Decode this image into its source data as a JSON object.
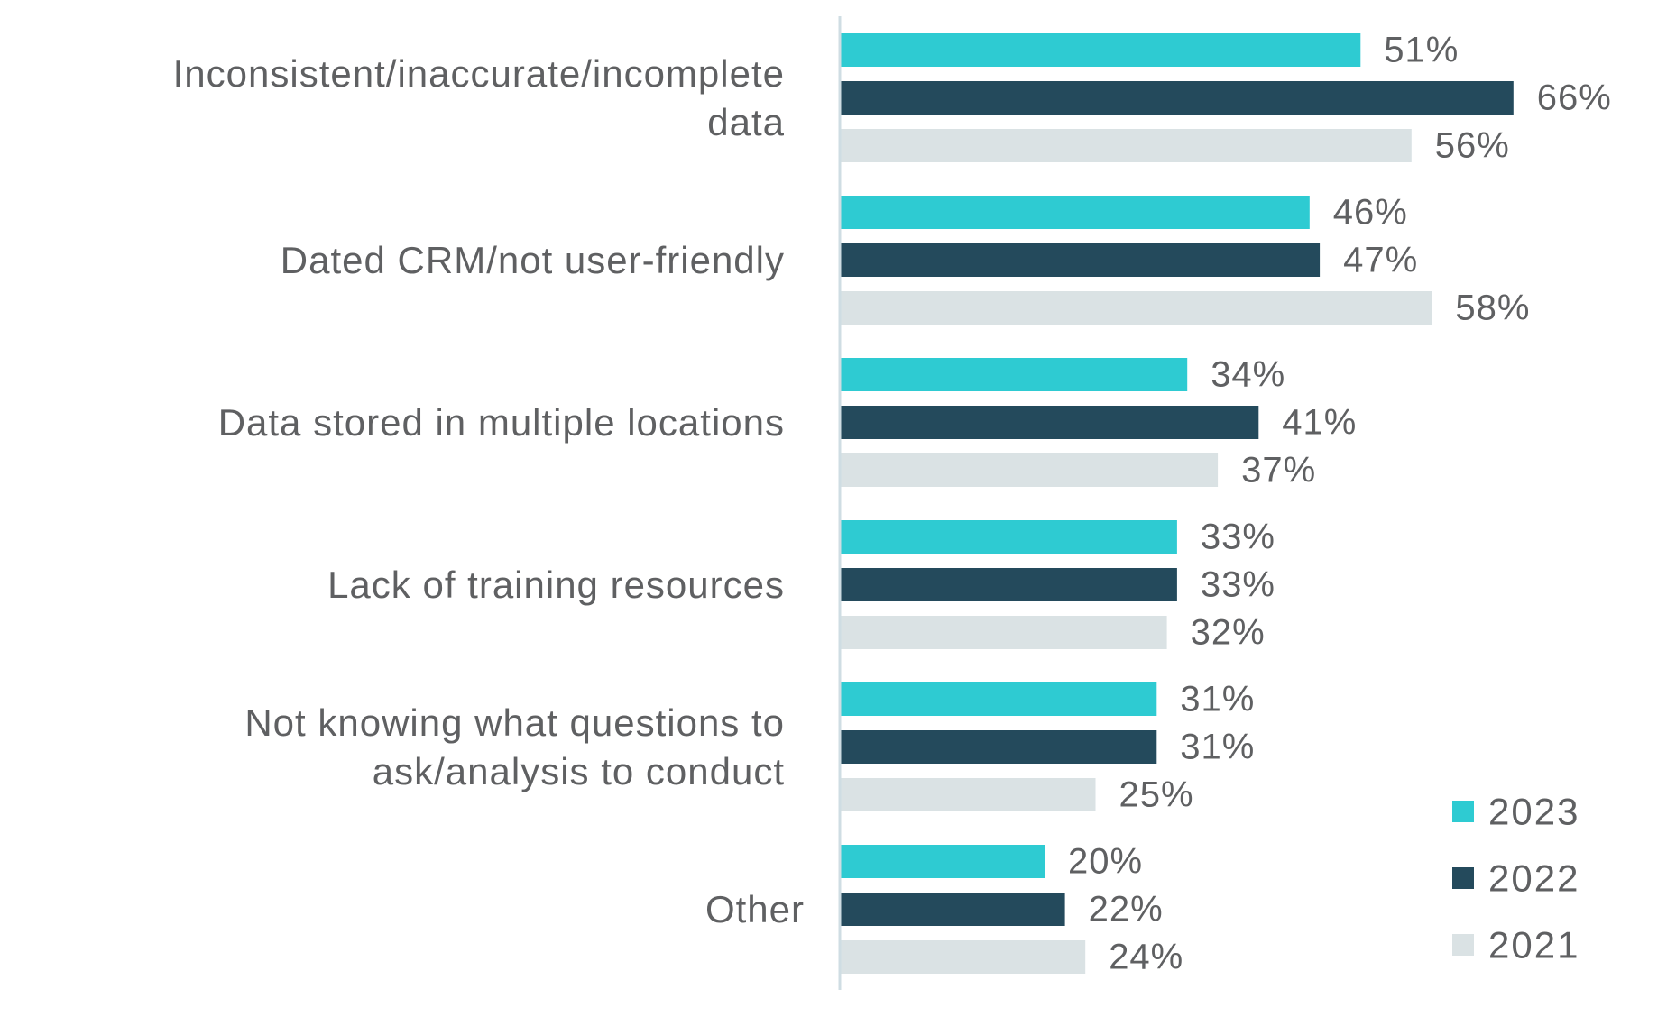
{
  "chart_data": {
    "type": "bar",
    "orientation": "horizontal",
    "categories": [
      "Inconsistent/inaccurate/incomplete data",
      "Dated CRM/not user-friendly",
      "Data stored in multiple locations",
      "Lack of training resources",
      "Not knowing what questions to ask/analysis to conduct",
      "Other"
    ],
    "category_lines": [
      [
        "Inconsistent/inaccurate/incomplete",
        "data"
      ],
      [
        "Dated CRM/not user-friendly"
      ],
      [
        "Data stored in multiple locations"
      ],
      [
        "Lack of training resources"
      ],
      [
        "Not knowing what questions to",
        "ask/analysis to conduct"
      ],
      [
        "Other"
      ]
    ],
    "series": [
      {
        "name": "2023",
        "color": "#2ecbd2",
        "values": [
          51,
          46,
          34,
          33,
          31,
          20
        ]
      },
      {
        "name": "2022",
        "color": "#244a5c",
        "values": [
          66,
          47,
          41,
          33,
          31,
          22
        ]
      },
      {
        "name": "2021",
        "color": "#dae2e4",
        "values": [
          56,
          58,
          37,
          32,
          25,
          24
        ]
      }
    ],
    "value_suffix": "%",
    "xlim": [
      0,
      100
    ],
    "grid": false,
    "legend_position": "bottom-right",
    "title": "",
    "xlabel": "",
    "ylabel": ""
  }
}
